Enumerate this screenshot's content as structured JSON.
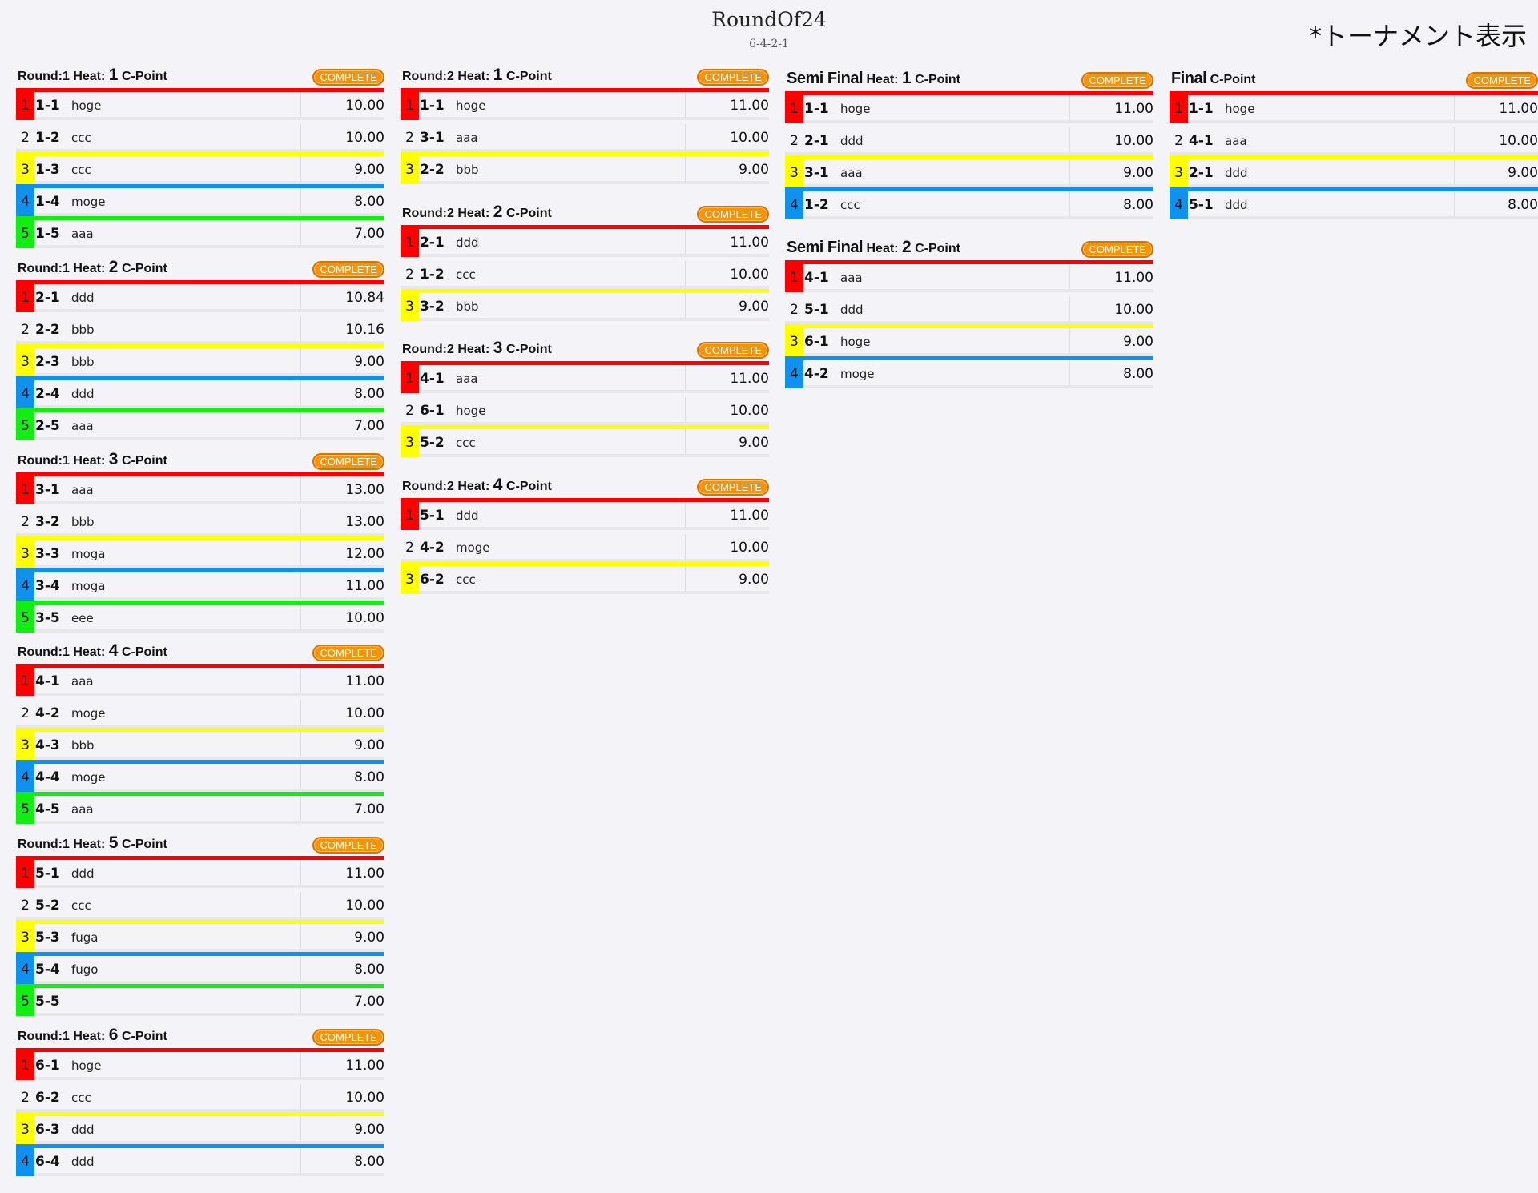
{
  "header": {
    "title": "RoundOf24",
    "subtitle": "6-4-2-1",
    "tournament_link": "*トーナメント表示"
  },
  "columns": [
    {
      "name": "round1",
      "heats": [
        {
          "round_label": "Round:1",
          "heat_label": "Heat:",
          "heat_num": "1",
          "point_label": "C-Point",
          "status": "COMPLETE",
          "rows": [
            {
              "rank": "1",
              "id": "1-1",
              "name": "hoge",
              "score": "10.00"
            },
            {
              "rank": "2",
              "id": "1-2",
              "name": "ccc",
              "score": "10.00"
            },
            {
              "rank": "3",
              "id": "1-3",
              "name": "ccc",
              "score": "9.00"
            },
            {
              "rank": "4",
              "id": "1-4",
              "name": "moge",
              "score": "8.00"
            },
            {
              "rank": "5",
              "id": "1-5",
              "name": "aaa",
              "score": "7.00"
            }
          ]
        },
        {
          "round_label": "Round:1",
          "heat_label": "Heat:",
          "heat_num": "2",
          "point_label": "C-Point",
          "status": "COMPLETE",
          "rows": [
            {
              "rank": "1",
              "id": "2-1",
              "name": "ddd",
              "score": "10.84"
            },
            {
              "rank": "2",
              "id": "2-2",
              "name": "bbb",
              "score": "10.16"
            },
            {
              "rank": "3",
              "id": "2-3",
              "name": "bbb",
              "score": "9.00"
            },
            {
              "rank": "4",
              "id": "2-4",
              "name": "ddd",
              "score": "8.00"
            },
            {
              "rank": "5",
              "id": "2-5",
              "name": "aaa",
              "score": "7.00"
            }
          ]
        },
        {
          "round_label": "Round:1",
          "heat_label": "Heat:",
          "heat_num": "3",
          "point_label": "C-Point",
          "status": "COMPLETE",
          "rows": [
            {
              "rank": "1",
              "id": "3-1",
              "name": "aaa",
              "score": "13.00"
            },
            {
              "rank": "2",
              "id": "3-2",
              "name": "bbb",
              "score": "13.00"
            },
            {
              "rank": "3",
              "id": "3-3",
              "name": "moga",
              "score": "12.00"
            },
            {
              "rank": "4",
              "id": "3-4",
              "name": "moga",
              "score": "11.00"
            },
            {
              "rank": "5",
              "id": "3-5",
              "name": "eee",
              "score": "10.00"
            }
          ]
        },
        {
          "round_label": "Round:1",
          "heat_label": "Heat:",
          "heat_num": "4",
          "point_label": "C-Point",
          "status": "COMPLETE",
          "rows": [
            {
              "rank": "1",
              "id": "4-1",
              "name": "aaa",
              "score": "11.00"
            },
            {
              "rank": "2",
              "id": "4-2",
              "name": "moge",
              "score": "10.00"
            },
            {
              "rank": "3",
              "id": "4-3",
              "name": "bbb",
              "score": "9.00"
            },
            {
              "rank": "4",
              "id": "4-4",
              "name": "moge",
              "score": "8.00"
            },
            {
              "rank": "5",
              "id": "4-5",
              "name": "aaa",
              "score": "7.00"
            }
          ]
        },
        {
          "round_label": "Round:1",
          "heat_label": "Heat:",
          "heat_num": "5",
          "point_label": "C-Point",
          "status": "COMPLETE",
          "rows": [
            {
              "rank": "1",
              "id": "5-1",
              "name": "ddd",
              "score": "11.00"
            },
            {
              "rank": "2",
              "id": "5-2",
              "name": "ccc",
              "score": "10.00"
            },
            {
              "rank": "3",
              "id": "5-3",
              "name": "fuga",
              "score": "9.00"
            },
            {
              "rank": "4",
              "id": "5-4",
              "name": "fugo",
              "score": "8.00"
            },
            {
              "rank": "5",
              "id": "5-5",
              "name": "",
              "score": "7.00"
            }
          ]
        },
        {
          "round_label": "Round:1",
          "heat_label": "Heat:",
          "heat_num": "6",
          "point_label": "C-Point",
          "status": "COMPLETE",
          "rows": [
            {
              "rank": "1",
              "id": "6-1",
              "name": "hoge",
              "score": "11.00"
            },
            {
              "rank": "2",
              "id": "6-2",
              "name": "ccc",
              "score": "10.00"
            },
            {
              "rank": "3",
              "id": "6-3",
              "name": "ddd",
              "score": "9.00"
            },
            {
              "rank": "4",
              "id": "6-4",
              "name": "ddd",
              "score": "8.00"
            }
          ]
        }
      ]
    },
    {
      "name": "round2",
      "heats": [
        {
          "round_label": "Round:2",
          "heat_label": "Heat:",
          "heat_num": "1",
          "point_label": "C-Point",
          "status": "COMPLETE",
          "rows": [
            {
              "rank": "1",
              "id": "1-1",
              "name": "hoge",
              "score": "11.00"
            },
            {
              "rank": "2",
              "id": "3-1",
              "name": "aaa",
              "score": "10.00"
            },
            {
              "rank": "3",
              "id": "2-2",
              "name": "bbb",
              "score": "9.00"
            }
          ]
        },
        {
          "round_label": "Round:2",
          "heat_label": "Heat:",
          "heat_num": "2",
          "point_label": "C-Point",
          "status": "COMPLETE",
          "rows": [
            {
              "rank": "1",
              "id": "2-1",
              "name": "ddd",
              "score": "11.00"
            },
            {
              "rank": "2",
              "id": "1-2",
              "name": "ccc",
              "score": "10.00"
            },
            {
              "rank": "3",
              "id": "3-2",
              "name": "bbb",
              "score": "9.00"
            }
          ]
        },
        {
          "round_label": "Round:2",
          "heat_label": "Heat:",
          "heat_num": "3",
          "point_label": "C-Point",
          "status": "COMPLETE",
          "rows": [
            {
              "rank": "1",
              "id": "4-1",
              "name": "aaa",
              "score": "11.00"
            },
            {
              "rank": "2",
              "id": "6-1",
              "name": "hoge",
              "score": "10.00"
            },
            {
              "rank": "3",
              "id": "5-2",
              "name": "ccc",
              "score": "9.00"
            }
          ]
        },
        {
          "round_label": "Round:2",
          "heat_label": "Heat:",
          "heat_num": "4",
          "point_label": "C-Point",
          "status": "COMPLETE",
          "rows": [
            {
              "rank": "1",
              "id": "5-1",
              "name": "ddd",
              "score": "11.00"
            },
            {
              "rank": "2",
              "id": "4-2",
              "name": "moge",
              "score": "10.00"
            },
            {
              "rank": "3",
              "id": "6-2",
              "name": "ccc",
              "score": "9.00"
            }
          ]
        }
      ]
    },
    {
      "name": "semifinal",
      "heats": [
        {
          "round_label": "Semi Final",
          "heat_label": "Heat:",
          "heat_num": "1",
          "point_label": "C-Point",
          "status": "COMPLETE",
          "rows": [
            {
              "rank": "1",
              "id": "1-1",
              "name": "hoge",
              "score": "11.00"
            },
            {
              "rank": "2",
              "id": "2-1",
              "name": "ddd",
              "score": "10.00"
            },
            {
              "rank": "3",
              "id": "3-1",
              "name": "aaa",
              "score": "9.00"
            },
            {
              "rank": "4",
              "id": "1-2",
              "name": "ccc",
              "score": "8.00"
            }
          ]
        },
        {
          "round_label": "Semi Final",
          "heat_label": "Heat:",
          "heat_num": "2",
          "point_label": "C-Point",
          "status": "COMPLETE",
          "rows": [
            {
              "rank": "1",
              "id": "4-1",
              "name": "aaa",
              "score": "11.00"
            },
            {
              "rank": "2",
              "id": "5-1",
              "name": "ddd",
              "score": "10.00"
            },
            {
              "rank": "3",
              "id": "6-1",
              "name": "hoge",
              "score": "9.00"
            },
            {
              "rank": "4",
              "id": "4-2",
              "name": "moge",
              "score": "8.00"
            }
          ]
        }
      ]
    },
    {
      "name": "final",
      "heats": [
        {
          "round_label": "Final",
          "heat_label": "",
          "heat_num": "",
          "point_label": "C-Point",
          "status": "COMPLETE",
          "rows": [
            {
              "rank": "1",
              "id": "1-1",
              "name": "hoge",
              "score": "11.00"
            },
            {
              "rank": "2",
              "id": "4-1",
              "name": "aaa",
              "score": "10.00"
            },
            {
              "rank": "3",
              "id": "2-1",
              "name": "ddd",
              "score": "9.00"
            },
            {
              "rank": "4",
              "id": "5-1",
              "name": "ddd",
              "score": "8.00"
            }
          ]
        }
      ]
    }
  ]
}
